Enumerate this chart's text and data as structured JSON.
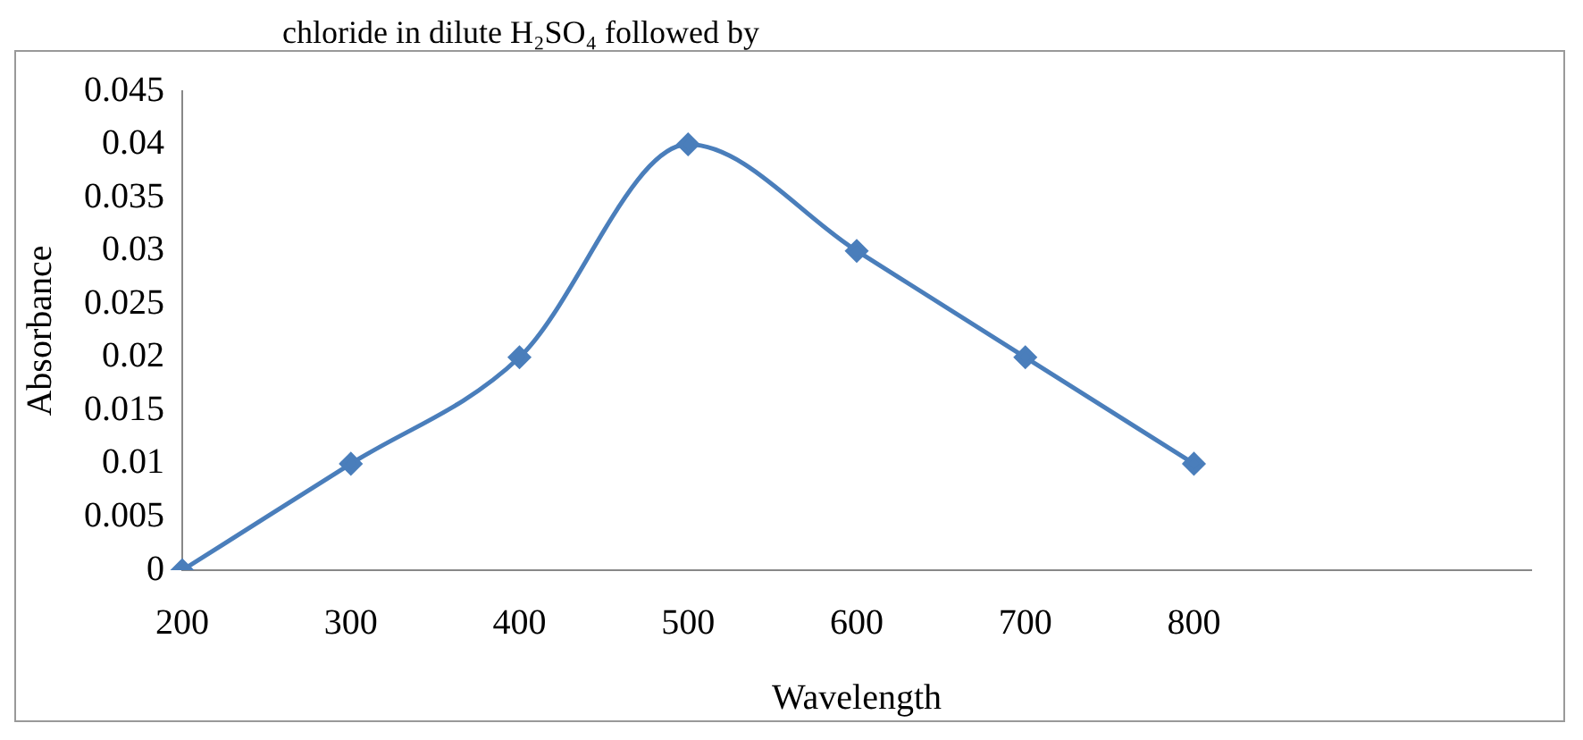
{
  "chart_data": {
    "type": "line",
    "xlabel": "Wavelength",
    "ylabel": "Absorbance",
    "annotations": [
      "chloride in dilute H₂SO₄ followed by"
    ],
    "categories": [
      "200",
      "300",
      "400",
      "500",
      "600",
      "700",
      "800",
      null,
      null
    ],
    "series": [
      {
        "color": "#4a7ebb",
        "values": [
          0,
          0.01,
          0.02,
          0.04,
          0.03,
          0.02,
          0.01,
          null,
          null
        ]
      }
    ],
    "ylim": [
      0,
      0.045
    ],
    "yticks": [
      0,
      0.005,
      0.01,
      0.015,
      0.02,
      0.025,
      0.03,
      0.035,
      0.04,
      0.045
    ],
    "grid": false,
    "legend": false,
    "marker": "diamond",
    "line_style": "solid"
  }
}
